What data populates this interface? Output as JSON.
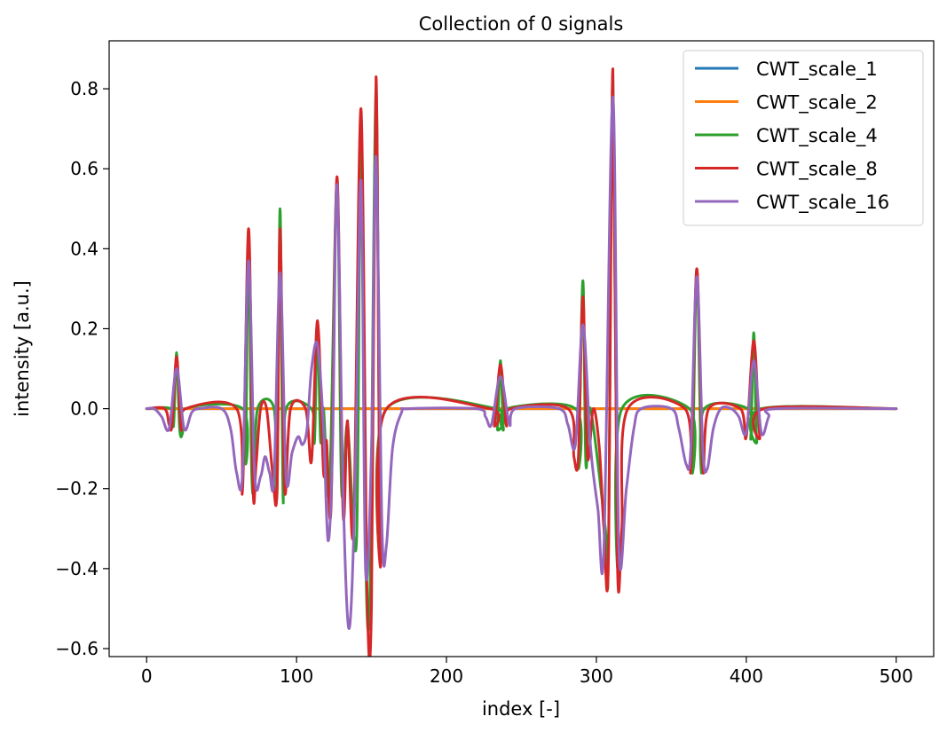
{
  "chart_data": {
    "type": "line",
    "title": "Collection of 0 signals",
    "xlabel": "index [-]",
    "ylabel": "intensity [a.u.]",
    "xlim": [
      -25,
      525
    ],
    "ylim": [
      -0.62,
      0.92
    ],
    "xticks": [
      0,
      100,
      200,
      300,
      400,
      500
    ],
    "xtick_labels": [
      "0",
      "100",
      "200",
      "300",
      "400",
      "500"
    ],
    "yticks": [
      -0.6,
      -0.4,
      -0.2,
      0.0,
      0.2,
      0.4,
      0.6,
      0.8
    ],
    "ytick_labels": [
      "−0.6",
      "−0.4",
      "−0.2",
      "0.0",
      "0.2",
      "0.4",
      "0.6",
      "0.8"
    ],
    "grid": false,
    "legend_position": "top-right",
    "series": [
      {
        "name": "CWT_scale_1",
        "color": "#1f77b4",
        "points": [
          [
            0,
            0
          ],
          [
            20,
            0
          ],
          [
            68,
            0
          ],
          [
            89,
            0
          ],
          [
            114,
            0
          ],
          [
            127,
            0
          ],
          [
            143,
            0
          ],
          [
            153,
            0
          ],
          [
            236,
            0
          ],
          [
            291,
            0
          ],
          [
            311,
            0
          ],
          [
            367,
            0
          ],
          [
            405,
            0
          ],
          [
            500,
            0
          ]
        ]
      },
      {
        "name": "CWT_scale_2",
        "color": "#ff7f0e",
        "points": [
          [
            0,
            0
          ],
          [
            20,
            0
          ],
          [
            68,
            0
          ],
          [
            89,
            0
          ],
          [
            114,
            0
          ],
          [
            127,
            0
          ],
          [
            143,
            0
          ],
          [
            153,
            0
          ],
          [
            236,
            0
          ],
          [
            291,
            0
          ],
          [
            311,
            0
          ],
          [
            367,
            0
          ],
          [
            405,
            0
          ],
          [
            500,
            0
          ]
        ]
      },
      {
        "name": "CWT_scale_4",
        "color": "#2ca02c",
        "points": [
          [
            0,
            0
          ],
          [
            16,
            0
          ],
          [
            18,
            -0.04
          ],
          [
            20,
            0.14
          ],
          [
            22,
            -0.05
          ],
          [
            24,
            -0.06
          ],
          [
            26,
            0
          ],
          [
            64,
            0
          ],
          [
            66,
            -0.12
          ],
          [
            68,
            0.45
          ],
          [
            70,
            -0.15
          ],
          [
            72,
            -0.18
          ],
          [
            74,
            0
          ],
          [
            85,
            0
          ],
          [
            87,
            -0.21
          ],
          [
            89,
            0.5
          ],
          [
            91,
            -0.22
          ],
          [
            93,
            0
          ],
          [
            110,
            0
          ],
          [
            112,
            -0.08
          ],
          [
            114,
            0.21
          ],
          [
            116,
            -0.08
          ],
          [
            118,
            0
          ],
          [
            122,
            -0.2
          ],
          [
            127,
            0.57
          ],
          [
            130,
            -0.2
          ],
          [
            134,
            -0.04
          ],
          [
            140,
            -0.33
          ],
          [
            143,
            0.74
          ],
          [
            146,
            -0.35
          ],
          [
            149,
            -0.45
          ],
          [
            153,
            0.8
          ],
          [
            156,
            -0.36
          ],
          [
            160,
            0
          ],
          [
            233,
            0
          ],
          [
            234,
            -0.05
          ],
          [
            236,
            0.12
          ],
          [
            238,
            -0.05
          ],
          [
            240,
            0
          ],
          [
            286,
            0
          ],
          [
            288,
            -0.14
          ],
          [
            291,
            0.32
          ],
          [
            293,
            -0.14
          ],
          [
            296,
            0
          ],
          [
            306,
            -0.3
          ],
          [
            308,
            -0.37
          ],
          [
            311,
            0.84
          ],
          [
            314,
            -0.37
          ],
          [
            317,
            0
          ],
          [
            362,
            0
          ],
          [
            364,
            -0.15
          ],
          [
            367,
            0.35
          ],
          [
            370,
            -0.15
          ],
          [
            372,
            0
          ],
          [
            401,
            0
          ],
          [
            403,
            -0.07
          ],
          [
            405,
            0.19
          ],
          [
            407,
            -0.08
          ],
          [
            410,
            0
          ],
          [
            500,
            0
          ]
        ]
      },
      {
        "name": "CWT_scale_8",
        "color": "#d62728",
        "points": [
          [
            0,
            0
          ],
          [
            12,
            0
          ],
          [
            15,
            -0.04
          ],
          [
            17,
            -0.04
          ],
          [
            20,
            0.13
          ],
          [
            23,
            -0.05
          ],
          [
            26,
            0
          ],
          [
            60,
            0
          ],
          [
            64,
            -0.2
          ],
          [
            68,
            0.45
          ],
          [
            71,
            -0.2
          ],
          [
            73,
            -0.14
          ],
          [
            76,
            0
          ],
          [
            80,
            0
          ],
          [
            84,
            -0.16
          ],
          [
            87,
            -0.2
          ],
          [
            89,
            0.45
          ],
          [
            92,
            -0.2
          ],
          [
            96,
            0
          ],
          [
            106,
            0
          ],
          [
            110,
            -0.13
          ],
          [
            114,
            0.22
          ],
          [
            118,
            -0.16
          ],
          [
            120,
            -0.08
          ],
          [
            123,
            -0.25
          ],
          [
            127,
            0.58
          ],
          [
            131,
            -0.26
          ],
          [
            134,
            -0.03
          ],
          [
            138,
            -0.3
          ],
          [
            143,
            0.75
          ],
          [
            147,
            -0.45
          ],
          [
            150,
            -0.49
          ],
          [
            153,
            0.83
          ],
          [
            156,
            -0.37
          ],
          [
            160,
            0
          ],
          [
            229,
            0
          ],
          [
            232,
            -0.04
          ],
          [
            236,
            0.11
          ],
          [
            240,
            -0.04
          ],
          [
            243,
            0
          ],
          [
            281,
            0
          ],
          [
            285,
            -0.12
          ],
          [
            288,
            -0.12
          ],
          [
            291,
            0.28
          ],
          [
            294,
            -0.12
          ],
          [
            298,
            0
          ],
          [
            302,
            -0.1
          ],
          [
            305,
            -0.3
          ],
          [
            308,
            -0.38
          ],
          [
            311,
            0.85
          ],
          [
            314,
            -0.38
          ],
          [
            317,
            -0.3
          ],
          [
            321,
            0
          ],
          [
            359,
            0
          ],
          [
            363,
            -0.15
          ],
          [
            367,
            0.35
          ],
          [
            371,
            -0.15
          ],
          [
            375,
            0
          ],
          [
            396,
            0
          ],
          [
            400,
            -0.07
          ],
          [
            405,
            0.17
          ],
          [
            409,
            -0.07
          ],
          [
            412,
            0
          ],
          [
            500,
            0
          ]
        ]
      },
      {
        "name": "CWT_scale_16",
        "color": "#9467bd",
        "points": [
          [
            0,
            0
          ],
          [
            5,
            0
          ],
          [
            10,
            -0.02
          ],
          [
            15,
            -0.05
          ],
          [
            20,
            0.1
          ],
          [
            25,
            -0.05
          ],
          [
            30,
            -0.01
          ],
          [
            35,
            0
          ],
          [
            50,
            0
          ],
          [
            56,
            -0.05
          ],
          [
            60,
            -0.16
          ],
          [
            64,
            -0.16
          ],
          [
            68,
            0.37
          ],
          [
            72,
            -0.16
          ],
          [
            76,
            -0.17
          ],
          [
            79,
            -0.12
          ],
          [
            82,
            -0.16
          ],
          [
            85,
            -0.17
          ],
          [
            89,
            0.34
          ],
          [
            93,
            -0.17
          ],
          [
            97,
            -0.11
          ],
          [
            101,
            -0.07
          ],
          [
            104,
            -0.09
          ],
          [
            107,
            -0.05
          ],
          [
            110,
            0.1
          ],
          [
            114,
            0.16
          ],
          [
            118,
            -0.05
          ],
          [
            121,
            -0.33
          ],
          [
            124,
            -0.1
          ],
          [
            127,
            0.56
          ],
          [
            131,
            -0.2
          ],
          [
            135,
            -0.55
          ],
          [
            139,
            -0.2
          ],
          [
            143,
            0.57
          ],
          [
            146,
            -0.4
          ],
          [
            150,
            -0.1
          ],
          [
            153,
            0.63
          ],
          [
            157,
            -0.3
          ],
          [
            160,
            -0.34
          ],
          [
            164,
            -0.1
          ],
          [
            170,
            -0.01
          ],
          [
            175,
            0
          ],
          [
            220,
            0
          ],
          [
            226,
            -0.02
          ],
          [
            230,
            -0.04
          ],
          [
            236,
            0.08
          ],
          [
            242,
            -0.04
          ],
          [
            246,
            0
          ],
          [
            275,
            0
          ],
          [
            281,
            -0.04
          ],
          [
            286,
            -0.09
          ],
          [
            291,
            0.21
          ],
          [
            296,
            -0.09
          ],
          [
            301,
            -0.25
          ],
          [
            305,
            -0.35
          ],
          [
            311,
            0.78
          ],
          [
            315,
            -0.35
          ],
          [
            320,
            -0.2
          ],
          [
            325,
            -0.05
          ],
          [
            330,
            0
          ],
          [
            350,
            0
          ],
          [
            355,
            -0.05
          ],
          [
            360,
            -0.14
          ],
          [
            363,
            -0.1
          ],
          [
            367,
            0.33
          ],
          [
            371,
            -0.1
          ],
          [
            374,
            -0.15
          ],
          [
            378,
            -0.05
          ],
          [
            383,
            0
          ],
          [
            390,
            0
          ],
          [
            395,
            -0.02
          ],
          [
            400,
            -0.06
          ],
          [
            405,
            0.12
          ],
          [
            410,
            -0.06
          ],
          [
            415,
            -0.02
          ],
          [
            420,
            0
          ],
          [
            500,
            0
          ]
        ]
      }
    ]
  }
}
